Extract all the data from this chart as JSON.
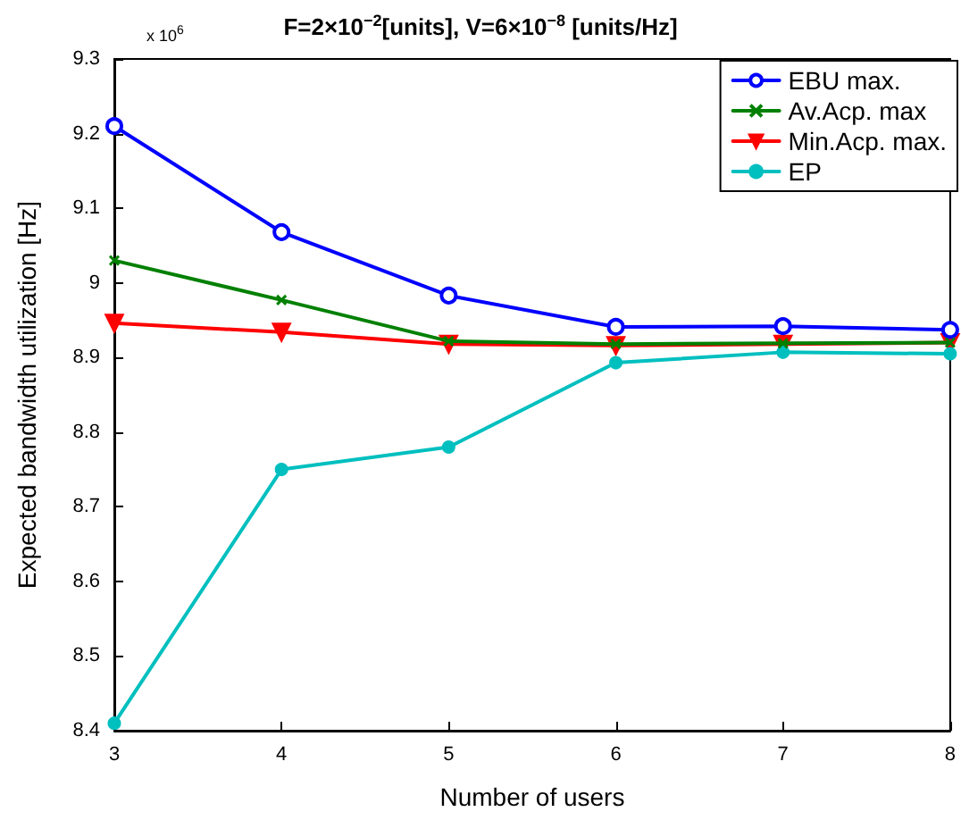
{
  "chart_data": {
    "type": "line",
    "title": "F=2×10$^{−2}$[units], V=6×10$^{−8}$ [units/Hz]",
    "xlabel": "Number of users",
    "ylabel": "Expected bandwidth utilization [Hz]",
    "annotations": [
      "x 10$^{6}$"
    ],
    "x": [
      3,
      4,
      5,
      6,
      7,
      8
    ],
    "series": [
      {
        "name": "EBU max.",
        "color": "#0000ff",
        "marker": "circle",
        "values": [
          9.21,
          9.068,
          8.983,
          8.941,
          8.942,
          8.937
        ]
      },
      {
        "name": "Av.Acp. max",
        "color": "#008000",
        "marker": "cross",
        "values": [
          9.03,
          8.977,
          8.922,
          8.918,
          8.919,
          8.92
        ]
      },
      {
        "name": "Min.Acp. max.",
        "color": "#ff0000",
        "marker": "triangle",
        "values": [
          8.946,
          8.934,
          8.918,
          8.916,
          8.918,
          8.92
        ]
      },
      {
        "name": "EP",
        "color": "#00bfbf",
        "marker": "dot",
        "values": [
          8.41,
          8.75,
          8.78,
          8.893,
          8.907,
          8.905
        ]
      }
    ],
    "xlim": [
      3,
      8
    ],
    "xticks": [
      3,
      4,
      5,
      6,
      7,
      8
    ],
    "ylim": [
      8.4,
      9.3
    ],
    "yticks": [
      8.4,
      8.5,
      8.6,
      8.7,
      8.8,
      8.9,
      9,
      9.1,
      9.2,
      9.3
    ],
    "grid": false,
    "legend": "top right",
    "line_style": "solid"
  }
}
